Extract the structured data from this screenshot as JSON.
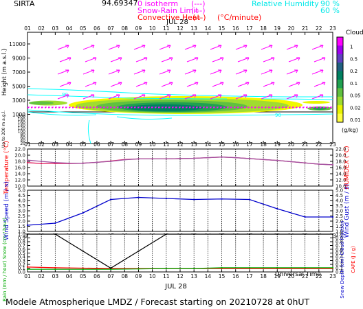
{
  "header": {
    "station": "SIRTA",
    "coords": "94.69347",
    "isotherm_label": "0 isotherm",
    "isotherm_mark": "(---)",
    "snowrain_label": "Snow-Rain Limit",
    "snowrain_mark": "(---)",
    "convheat_label": "Convective Heat",
    "convheat_mark": "(—)",
    "convheat_unit": "(°C/minute)",
    "rh_label": "Relative Humidity",
    "rh_90": "90 %",
    "rh_60": "60 %"
  },
  "date_label": "JUL 28",
  "hours": [
    "01",
    "02",
    "03",
    "04",
    "05",
    "06",
    "07",
    "08",
    "09",
    "10",
    "11",
    "12",
    "13",
    "14",
    "15",
    "16",
    "17",
    "18",
    "19",
    "20",
    "21",
    "22",
    "23"
  ],
  "footer": "Modele Atmospherique LMDZ / Forecast starting on 20210728 at 0hUT",
  "universal_time": "Universal Time",
  "colors": {
    "magenta": "#ff00ff",
    "cyan": "#00ffff",
    "red": "#ff0000",
    "crimson": "#e0185a",
    "blue": "#0000cc",
    "green": "#00aa00"
  },
  "panel1": {
    "ylabel_main": "Height (m a.s.l.)",
    "ylabel_sub": "Up to 200 m a.g.l.",
    "upper_ticks": [
      "11000",
      "9000",
      "7000",
      "5000",
      "3000",
      "1000"
    ],
    "lower_ticks": [
      "200",
      "180",
      "160",
      "140",
      "120",
      "100",
      "80",
      "60",
      "40",
      "20"
    ],
    "cloud_title": "Clouds",
    "cloud_levels": [
      "1",
      "0.5",
      "0.2",
      "0.1",
      "0.05",
      "0.02",
      "0.01"
    ],
    "cloud_unit": "(g/kg)",
    "cloud_colors": [
      "#ff00ff",
      "#a000f0",
      "#6040c0",
      "#206080",
      "#008060",
      "#20a050",
      "#60c040",
      "#a0dc30",
      "#e8f400",
      "#ffff40"
    ],
    "rh_contour_labels": [
      "90",
      "90"
    ]
  },
  "chart_data": [
    {
      "type": "line",
      "title": "",
      "x": [
        "01",
        "02",
        "03",
        "04",
        "05",
        "06",
        "07",
        "08",
        "09",
        "10",
        "11",
        "12",
        "13",
        "14",
        "15",
        "16",
        "17",
        "18",
        "19",
        "20",
        "21",
        "22",
        "23"
      ],
      "ylabel": "Temperature (°C)",
      "ylabel_right": "HUMIDEX (°C)",
      "ylim": [
        10.0,
        22.0
      ],
      "yticks": [
        "10.0",
        "12.0",
        "14.0",
        "16.0",
        "18.0",
        "20.0",
        "22.0"
      ],
      "series": [
        {
          "color": "#e0185a",
          "values": [
            17.6,
            17.3,
            17.3,
            17.3,
            17.4,
            17.7,
            18.1,
            18.6,
            18.8,
            18.8,
            18.8,
            18.9,
            19.0,
            19.2,
            19.4,
            19.2,
            18.9,
            18.6,
            18.3,
            17.9,
            17.5,
            17.1,
            16.9
          ]
        },
        {
          "color": "#a050a0",
          "values": [
            18.4,
            18.0,
            17.6,
            17.4,
            17.4,
            17.7,
            18.0,
            18.5,
            18.8,
            18.8,
            18.8,
            18.9,
            19.0,
            19.2,
            19.4,
            19.2,
            18.9,
            18.6,
            18.3,
            17.9,
            17.5,
            17.1,
            16.9
          ]
        }
      ]
    },
    {
      "type": "line",
      "title": "",
      "x": [
        "01",
        "03",
        "05",
        "07",
        "09",
        "11",
        "13",
        "15",
        "17",
        "19",
        "21",
        "23"
      ],
      "ylabel": "Wind Speed (m / s)",
      "ylabel_right": "Wind Gust (m / s)",
      "ylim": [
        1.0,
        5.0
      ],
      "yticks": [
        "1.0",
        "1.5",
        "2.0",
        "2.5",
        "3.0",
        "3.5",
        "4.0",
        "4.5",
        "5.0"
      ],
      "series": [
        {
          "color": "#0000cc",
          "values": [
            1.6,
            1.8,
            2.8,
            4.1,
            4.3,
            4.2,
            4.1,
            4.15,
            4.1,
            3.2,
            2.4,
            2.4
          ]
        }
      ]
    },
    {
      "type": "line",
      "title": "",
      "x": [
        "01",
        "03",
        "05",
        "07",
        "09",
        "11",
        "13",
        "15",
        "17",
        "19",
        "21",
        "23"
      ],
      "ylabel": "Rain (mm / hour)  Snow (cm / hour)",
      "ylabel_right": "Snow Depth (cm)  Cloud Fraction",
      "ylabel_right2": "CAPE (J / g)",
      "ylim": [
        0.0,
        1.0
      ],
      "yticks": [
        "0.0",
        "0.1",
        "0.2",
        "0.3",
        "0.4",
        "0.5",
        "0.6",
        "0.7",
        "0.8",
        "0.9",
        "1.0"
      ],
      "series": [
        {
          "color": "#ff0000",
          "values": [
            0.13,
            0.11,
            0.1,
            0.09,
            0.09,
            0.09,
            0.09,
            0.09,
            0.09,
            0.09,
            0.09,
            0.09
          ]
        },
        {
          "color": "#00aa00",
          "values": [
            0.07,
            0.07,
            0.07,
            0.07,
            0.08,
            0.09,
            0.09,
            0.11,
            0.11,
            0.11,
            0.11,
            0.11
          ]
        },
        {
          "color": "#000000",
          "values": [
            1.0,
            1.0,
            0.55,
            0.1,
            0.55,
            1.0,
            1.0,
            1.0,
            1.0,
            1.0,
            1.0,
            1.0
          ]
        }
      ]
    }
  ]
}
